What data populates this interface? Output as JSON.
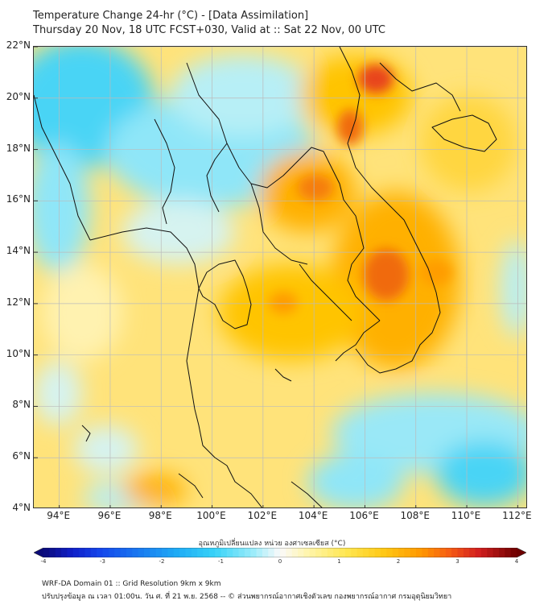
{
  "title_line1": "Temperature Change 24-hr (°C) - [Data Assimilation]",
  "title_line2": "Thursday 20 Nov, 18 UTC FCST+030, Valid at :: Sat 22 Nov, 00 UTC",
  "map": {
    "lat_labels": [
      "22°N",
      "20°N",
      "18°N",
      "16°N",
      "14°N",
      "12°N",
      "10°N",
      "8°N",
      "6°N",
      "4°N"
    ],
    "lon_labels": [
      "94°E",
      "96°E",
      "98°E",
      "100°E",
      "102°E",
      "104°E",
      "106°E",
      "108°E",
      "110°E",
      "112°E"
    ],
    "lat_range": [
      4,
      22
    ],
    "lon_range": [
      93,
      112.4
    ]
  },
  "colorbar": {
    "title": "อุณหภูมิเปลี่ยนแปลง หน่วย องศาเซลเซียส (°C)",
    "ticks": [
      "-4",
      "-3",
      "-2",
      "-1",
      "0",
      "1",
      "2",
      "3",
      "4"
    ],
    "range": [
      -4,
      4
    ]
  },
  "footer": {
    "line1": "WRF-DA Domain 01 :: Grid Resolution 9km x 9km",
    "line2": "ปรับปรุงข้อมูล ณ เวลา 01:00น. วัน ศ. ที่ 21 พ.ย. 2568 -- © ส่วนพยากรณ์อากาศเชิงตัวเลข กองพยากรณ์อากาศ กรมอุตุนิยมวิทยา"
  }
}
